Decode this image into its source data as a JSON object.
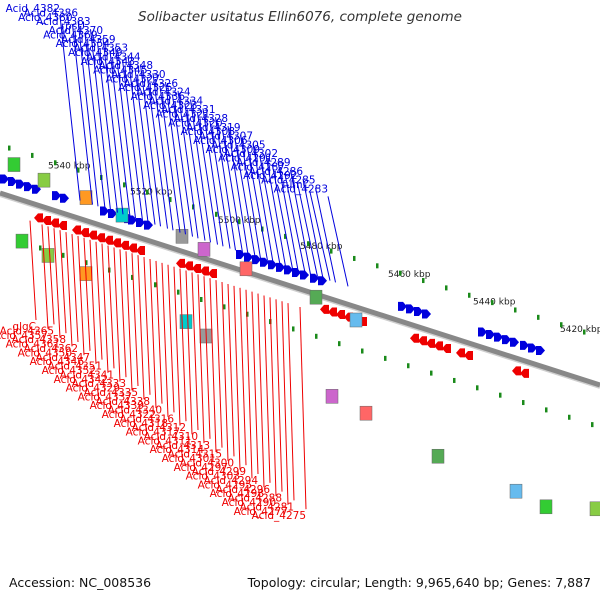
{
  "title": "Solibacter usitatus Ellin6076, complete genome",
  "accession": "Accession: NC_008536",
  "topology": "Topology: circular; Length: 9,965,640 bp; Genes: 7,887",
  "colors": {
    "forward": "#0000dd",
    "reverse": "#ee0000",
    "backbone": "#888888",
    "tick": "#1a8a1a"
  },
  "scale_labels": [
    "5540 kbp",
    "5520 kbp",
    "5500 kbp",
    "5480 kbp",
    "5460 kbp",
    "5440 kbp",
    "5420 kbp"
  ],
  "forward_labels": [
    "Acid_4382",
    "Acid_4386",
    "Acid_4380",
    "Acid_4383",
    "rpsU",
    "Acid_4370",
    "Acid_4369",
    "Acid_4359",
    "Acid_4354",
    "Acid_4353",
    "Acid_4349",
    "Acid_4344",
    "Acid_4343",
    "Acid_4348",
    "Acid_4345",
    "Acid_4330",
    "Acid_4327",
    "Acid_4326",
    "Acid_4325",
    "Acid_4324",
    "Acid_4336",
    "Acid_4334",
    "Acid_4323",
    "Acid_4331",
    "Acid_4321",
    "Acid_4328",
    "Acid_4320",
    "Acid_4319",
    "Acid_4308",
    "Acid_4307",
    "Acid_4306",
    "Acid_4305",
    "Acid_4309",
    "Acid_4302",
    "Acid_4291",
    "Acid_4289",
    "Acid_4287",
    "Acid_4286",
    "Acid_4292",
    "Acid_4285",
    "fumC",
    "Acid_4283"
  ],
  "reverse_labels": [
    "glgC",
    "Acid_4365",
    "Acid_4357",
    "Acid_4358",
    "Acid_4361",
    "Acid_4362",
    "Acid_4350",
    "Acid_4347",
    "Acid_4346",
    "Acid_4351",
    "Acid_4352",
    "Acid_4341",
    "Acid_4342",
    "Acid_4333",
    "Acid_4329",
    "Acid_4335",
    "Acid_4337",
    "Acid_4338",
    "Acid_4339",
    "Acid_4340",
    "Acid_4322",
    "Acid_4316",
    "Acid_4318",
    "Acid_4312",
    "Acid_4317",
    "Acid_4310",
    "Acid_4311",
    "Acid_4313",
    "Acid_4314",
    "Acid_4315",
    "Acid_4301",
    "Acid_4300",
    "Acid_4297",
    "Acid_4299",
    "Acid_4303",
    "Acid_4294",
    "Acid_4295",
    "Acid_4296",
    "Acid_4298",
    "Acid_4288",
    "Acid_4290",
    "Acid_4281",
    "Acid_4277",
    "Acid_4275"
  ]
}
